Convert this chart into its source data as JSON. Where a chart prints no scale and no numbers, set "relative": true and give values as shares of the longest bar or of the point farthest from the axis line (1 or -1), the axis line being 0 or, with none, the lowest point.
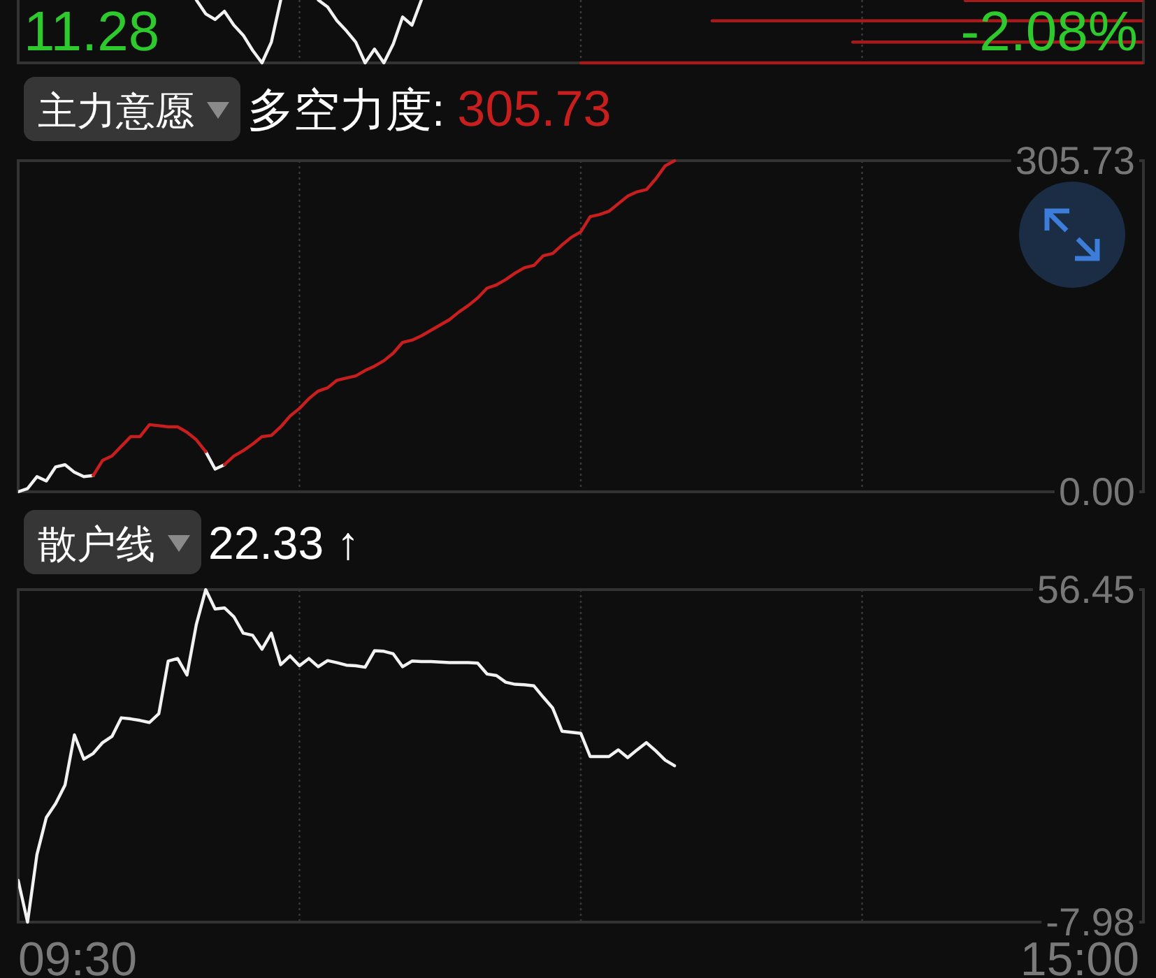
{
  "chart_data": [
    {
      "type": "line",
      "relative": true,
      "tick_labels": false,
      "grid": "x",
      "categories": [
        null,
        null,
        null,
        null,
        null,
        null,
        null,
        null,
        null,
        null,
        null,
        null,
        null,
        null,
        null,
        null,
        null,
        null,
        null,
        null,
        null,
        null,
        null,
        null,
        null,
        null,
        null,
        null,
        null,
        null,
        null,
        null,
        null,
        null,
        null,
        null,
        null,
        null,
        null,
        null,
        null,
        null,
        null,
        null,
        null,
        null,
        null,
        null,
        null,
        null,
        null,
        null,
        null,
        null,
        null,
        null,
        null,
        null,
        null,
        null,
        null,
        null,
        null,
        null,
        null,
        null,
        null,
        null,
        null,
        null,
        null,
        null,
        null,
        null,
        null,
        null,
        null,
        null,
        null,
        null,
        null,
        null,
        null,
        null,
        null,
        null,
        null,
        null,
        null,
        null,
        null,
        null,
        null,
        null,
        null,
        null,
        null,
        null,
        null,
        null,
        null,
        null,
        null,
        null,
        null,
        null,
        null,
        null,
        null,
        null,
        null,
        null,
        null,
        null,
        null,
        null,
        null,
        null,
        null,
        null,
        null
      ],
      "annotations": [
        "11.28",
        "-2.08%"
      ],
      "series": [
        {
          "color": "#f2f2f2",
          "values": [
            null,
            null,
            null,
            null,
            null,
            null,
            null,
            null,
            null,
            null,
            null,
            null,
            null,
            null,
            null,
            null,
            null,
            null,
            null,
            1,
            0.78,
            0.69,
            0.82,
            0.6,
            0.44,
            0.2,
            0,
            0.33,
            1,
            null,
            null,
            null,
            1,
            0.89,
            0.67,
            0.51,
            0.33,
            0,
            0.22,
            0,
            0.3,
            0.73,
            0.6,
            1,
            null,
            null,
            null,
            null,
            null,
            null,
            null,
            null,
            null,
            null,
            null,
            null,
            null,
            null,
            null,
            null,
            null,
            null,
            null,
            null,
            null,
            null,
            null,
            null,
            null,
            null,
            null,
            null,
            null,
            null,
            null,
            null,
            null,
            null,
            null,
            null,
            null,
            null,
            null,
            null,
            null,
            null,
            null,
            null,
            null,
            null,
            null,
            null,
            null,
            null,
            null,
            null,
            null,
            null,
            null,
            null,
            null,
            null,
            null,
            null,
            null,
            null,
            null,
            null,
            null,
            null,
            null,
            null,
            null,
            null,
            null,
            null,
            null,
            null,
            null,
            null,
            null
          ]
        },
        {
          "color": "#a51a1a",
          "values": [
            null,
            null,
            null,
            null,
            null,
            null,
            null,
            null,
            null,
            null,
            null,
            null,
            null,
            null,
            null,
            null,
            null,
            null,
            null,
            null,
            null,
            null,
            null,
            null,
            null,
            null,
            null,
            null,
            null,
            null,
            null,
            null,
            null,
            null,
            null,
            null,
            null,
            null,
            null,
            null,
            null,
            null,
            null,
            null,
            null,
            null,
            null,
            null,
            null,
            null,
            null,
            null,
            null,
            null,
            null,
            null,
            null,
            null,
            null,
            null,
            null,
            null,
            null,
            null,
            null,
            null,
            null,
            null,
            null,
            null,
            null,
            null,
            null,
            null,
            null,
            null,
            null,
            null,
            null,
            null,
            null,
            null,
            null,
            null,
            null,
            null,
            null,
            null,
            null,
            null,
            null,
            null,
            null,
            null,
            null,
            null,
            null,
            null,
            null,
            null,
            null,
            0.99,
            0.99,
            0.99,
            0.99,
            0.99,
            0.99,
            0.99,
            0.99,
            0.99,
            0.99,
            0.99,
            0.99,
            0.99,
            0.99,
            0.99,
            0.99,
            0.99,
            0.99,
            0.99,
            0.99
          ]
        },
        {
          "color": "#a51a1a",
          "values": [
            null,
            null,
            null,
            null,
            null,
            null,
            null,
            null,
            null,
            null,
            null,
            null,
            null,
            null,
            null,
            null,
            null,
            null,
            null,
            null,
            null,
            null,
            null,
            null,
            null,
            null,
            null,
            null,
            null,
            null,
            null,
            null,
            null,
            null,
            null,
            null,
            null,
            null,
            null,
            null,
            null,
            null,
            null,
            null,
            null,
            null,
            null,
            null,
            null,
            null,
            null,
            null,
            null,
            null,
            null,
            null,
            null,
            null,
            null,
            null,
            null,
            null,
            null,
            null,
            null,
            null,
            null,
            null,
            null,
            null,
            null,
            null,
            null,
            null,
            0.67,
            0.67,
            0.67,
            0.67,
            0.67,
            0.67,
            0.67,
            0.67,
            0.67,
            0.67,
            0.67,
            0.67,
            0.67,
            0.67,
            0.67,
            0.67,
            0.67,
            0.67,
            0.67,
            0.67,
            0.67,
            0.67,
            0.67,
            0.67,
            0.67,
            0.67,
            0.67,
            0.67,
            0.67,
            0.67,
            0.67,
            0.67,
            0.67,
            0.67,
            0.67,
            0.67,
            0.67,
            0.67,
            0.67,
            0.67,
            0.67,
            0.67,
            0.67,
            0.67,
            0.67,
            0.67,
            0.67
          ]
        },
        {
          "color": "#a51a1a",
          "values": [
            null,
            null,
            null,
            null,
            null,
            null,
            null,
            null,
            null,
            null,
            null,
            null,
            null,
            null,
            null,
            null,
            null,
            null,
            null,
            null,
            null,
            null,
            null,
            null,
            null,
            null,
            null,
            null,
            null,
            null,
            null,
            null,
            null,
            null,
            null,
            null,
            null,
            null,
            null,
            null,
            null,
            null,
            null,
            null,
            null,
            null,
            null,
            null,
            null,
            null,
            null,
            null,
            null,
            null,
            null,
            null,
            null,
            null,
            null,
            null,
            null,
            null,
            null,
            null,
            null,
            null,
            null,
            null,
            null,
            null,
            null,
            null,
            null,
            null,
            null,
            null,
            null,
            null,
            null,
            null,
            null,
            null,
            null,
            null,
            null,
            null,
            null,
            null,
            null,
            0.33,
            0.33,
            0.33,
            0.33,
            0.33,
            0.33,
            0.33,
            0.33,
            0.33,
            0.33,
            0.33,
            0.33,
            0.33,
            0.33,
            0.33,
            0.33,
            0.33,
            0.33,
            0.33,
            0.33,
            0.33,
            0.33,
            0.33,
            0.33,
            0.33,
            0.33,
            0.33,
            0.33,
            0.33,
            0.33,
            0.33,
            0.33
          ]
        },
        {
          "color": "#a51a1a",
          "values": [
            null,
            null,
            null,
            null,
            null,
            null,
            null,
            null,
            null,
            null,
            null,
            null,
            null,
            null,
            null,
            null,
            null,
            null,
            null,
            null,
            null,
            null,
            null,
            null,
            null,
            null,
            null,
            null,
            null,
            null,
            null,
            null,
            null,
            null,
            null,
            null,
            null,
            null,
            null,
            null,
            null,
            null,
            null,
            null,
            null,
            null,
            null,
            null,
            null,
            null,
            null,
            null,
            null,
            null,
            null,
            null,
            null,
            null,
            null,
            null,
            0,
            0,
            0,
            0,
            0,
            0,
            0,
            0,
            0,
            0,
            0,
            0,
            0,
            0,
            0,
            0,
            0,
            0,
            0,
            0,
            0,
            0,
            0,
            0,
            0,
            0,
            0,
            0,
            0,
            0,
            0,
            0,
            0,
            0,
            0,
            0,
            0,
            0,
            0,
            0,
            0,
            0,
            0,
            0,
            0,
            0,
            0,
            0,
            0,
            0,
            0,
            0,
            0,
            0,
            0,
            0,
            0,
            0,
            0,
            0,
            0
          ]
        }
      ]
    },
    {
      "type": "line",
      "title": "主力意愿",
      "subtitle": "多空力度:",
      "annotations": [
        "305.73"
      ],
      "tick_labels": "y",
      "grid": "x",
      "categories": [
        null,
        null,
        null,
        null,
        null,
        null,
        null,
        null,
        null,
        null,
        null,
        null,
        null,
        null,
        null,
        null,
        null,
        null,
        null,
        null,
        null,
        null,
        null,
        null,
        null,
        null,
        null,
        null,
        null,
        null,
        null,
        null,
        null,
        null,
        null,
        null,
        null,
        null,
        null,
        null,
        null,
        null,
        null,
        null,
        null,
        null,
        null,
        null,
        null,
        null,
        null,
        null,
        null,
        null,
        null,
        null,
        null,
        null,
        null,
        null,
        null,
        null,
        null,
        null,
        null,
        null,
        null,
        null,
        null,
        null,
        null,
        null,
        null,
        null,
        null,
        null,
        null,
        null,
        null,
        null,
        null,
        null,
        null,
        null,
        null,
        null,
        null,
        null,
        null,
        null,
        null,
        null,
        null,
        null,
        null,
        null,
        null,
        null,
        null,
        null,
        null,
        null,
        null,
        null,
        null,
        null,
        null,
        null,
        null,
        null,
        null,
        null,
        null,
        null,
        null,
        null,
        null,
        null,
        null,
        null,
        null
      ],
      "ylim": [
        0,
        305.73
      ],
      "yticks": [
        {
          "value": 0,
          "label": "0.00"
        },
        {
          "value": 305.73,
          "label": "305.73"
        }
      ],
      "series": [
        {
          "color": "#f2f2f2",
          "values": [
            0,
            3,
            14,
            10,
            23,
            25,
            18,
            14,
            15,
            null,
            null,
            null,
            null,
            null,
            null,
            null,
            null,
            null,
            null,
            null,
            37,
            21,
            25,
            null,
            null,
            null,
            null,
            null,
            null,
            null,
            null,
            null,
            null,
            null,
            null,
            null,
            null,
            null,
            null,
            null,
            null,
            null,
            null,
            null,
            null,
            null,
            null,
            null,
            null,
            null,
            null,
            null,
            null,
            null,
            null,
            null,
            null,
            null,
            null,
            null,
            null,
            null,
            null,
            null,
            null,
            null,
            null,
            null,
            null,
            null,
            null,
            null,
            null,
            null,
            null,
            null,
            null,
            null,
            null,
            null,
            null,
            null,
            null,
            null,
            null,
            null,
            null,
            null,
            null,
            null,
            null,
            null,
            null,
            null,
            null,
            null,
            null,
            null,
            null,
            null,
            null,
            null,
            null,
            null,
            null,
            null,
            null,
            null,
            null,
            null,
            null,
            null,
            null,
            null,
            null,
            null,
            null,
            null,
            null,
            null,
            null
          ]
        },
        {
          "color": "#c81e1e",
          "values": [
            null,
            null,
            null,
            null,
            null,
            null,
            null,
            null,
            15,
            29,
            33,
            42,
            51,
            51,
            62,
            61,
            60,
            60,
            55,
            48,
            37,
            null,
            25,
            33,
            38,
            44,
            51,
            52,
            60,
            70,
            77,
            86,
            93,
            96,
            103,
            105,
            107,
            112,
            116,
            121,
            128,
            138,
            140,
            144,
            149,
            154,
            159,
            166,
            172,
            179,
            188,
            191,
            196,
            202,
            207,
            209,
            218,
            220,
            228,
            235,
            240,
            254,
            256,
            259,
            266,
            273,
            277,
            279,
            289,
            301,
            305.73,
            null,
            null,
            null,
            null,
            null,
            null,
            null,
            null,
            null,
            null,
            null,
            null,
            null,
            null,
            null,
            null,
            null,
            null,
            null,
            null,
            null,
            null,
            null,
            null,
            null,
            null,
            null,
            null,
            null,
            null,
            null,
            null,
            null,
            null,
            null,
            null,
            null,
            null,
            null,
            null,
            null,
            null,
            null,
            null,
            null,
            null,
            null,
            null,
            null,
            null
          ]
        }
      ]
    },
    {
      "type": "line",
      "title": "散户线",
      "subtitle": "22.33 ↑",
      "tick_labels": "y",
      "grid": "x",
      "annotations": [
        "09:30",
        "15:00"
      ],
      "categories": [
        null,
        null,
        null,
        null,
        null,
        null,
        null,
        null,
        null,
        null,
        null,
        null,
        null,
        null,
        null,
        null,
        null,
        null,
        null,
        null,
        null,
        null,
        null,
        null,
        null,
        null,
        null,
        null,
        null,
        null,
        null,
        null,
        null,
        null,
        null,
        null,
        null,
        null,
        null,
        null,
        null,
        null,
        null,
        null,
        null,
        null,
        null,
        null,
        null,
        null,
        null,
        null,
        null,
        null,
        null,
        null,
        null,
        null,
        null,
        null,
        null,
        null,
        null,
        null,
        null,
        null,
        null,
        null,
        null,
        null,
        null,
        null,
        null,
        null,
        null,
        null,
        null,
        null,
        null,
        null,
        null,
        null,
        null,
        null,
        null,
        null,
        null,
        null,
        null,
        null,
        null,
        null,
        null,
        null,
        null,
        null,
        null,
        null,
        null,
        null,
        null,
        null,
        null,
        null,
        null,
        null,
        null,
        null,
        null,
        null,
        null,
        null,
        null,
        null,
        null,
        null,
        null,
        null,
        null,
        null,
        null
      ],
      "ylim": [
        -7.98,
        56.45
      ],
      "yticks": [
        {
          "value": -7.98,
          "label": "-7.98"
        },
        {
          "value": 56.45,
          "label": "56.45"
        }
      ],
      "series": [
        {
          "color": "#f2f2f2",
          "values": [
            0.1,
            -7.98,
            5.1,
            12.3,
            15,
            18.6,
            28.3,
            23.6,
            24.7,
            26.8,
            28,
            31.6,
            31.4,
            31.1,
            30.7,
            32.4,
            42.6,
            43.1,
            39.9,
            49.7,
            56.45,
            52.7,
            52.9,
            51.2,
            48,
            47.6,
            44.9,
            48,
            41.9,
            43.6,
            41.7,
            43.1,
            41.5,
            42.7,
            42.3,
            41.8,
            41.7,
            41.4,
            44.6,
            44.5,
            44,
            41.5,
            42.6,
            42.5,
            42.5,
            42.4,
            42.3,
            42.3,
            42.3,
            42.2,
            40.1,
            39.8,
            38.5,
            38.1,
            38,
            37.8,
            35.6,
            33.5,
            29,
            28.8,
            28.6,
            24.1,
            24.1,
            24.1,
            25.4,
            23.9,
            25.4,
            26.8,
            25.2,
            23.4,
            22.33,
            null,
            null,
            null,
            null,
            null,
            null,
            null,
            null,
            null,
            null,
            null,
            null,
            null,
            null,
            null,
            null,
            null,
            null,
            null,
            null,
            null,
            null,
            null,
            null,
            null,
            null,
            null,
            null,
            null,
            null,
            null,
            null,
            null,
            null,
            null,
            null,
            null,
            null,
            null,
            null,
            null,
            null,
            null,
            null,
            null,
            null,
            null,
            null,
            null,
            null
          ]
        }
      ]
    }
  ]
}
